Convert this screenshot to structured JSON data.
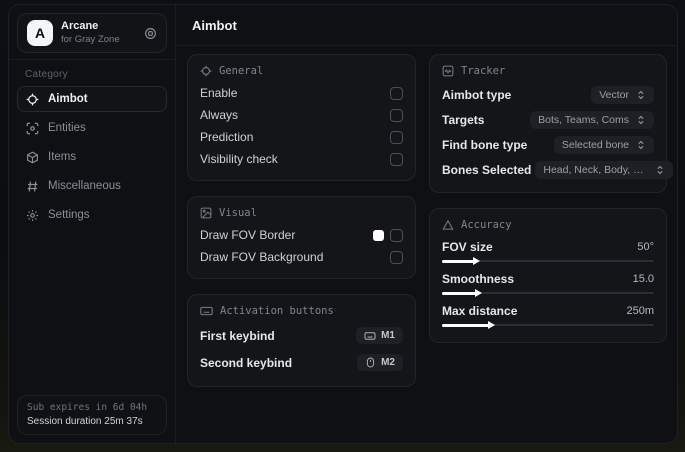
{
  "app": {
    "name": "Arcane",
    "subtitle": "for Gray Zone"
  },
  "sidebar": {
    "category_label": "Category",
    "items": [
      {
        "label": "Aimbot"
      },
      {
        "label": "Entities"
      },
      {
        "label": "Items"
      },
      {
        "label": "Miscellaneous"
      },
      {
        "label": "Settings"
      }
    ],
    "footer": {
      "line1": "Sub expires in 6d 04h",
      "line2": "Session duration 25m 37s"
    }
  },
  "header": {
    "title": "Aimbot"
  },
  "panels": {
    "general": {
      "title": "General",
      "rows": [
        {
          "label": "Enable",
          "checked": false
        },
        {
          "label": "Always",
          "checked": false
        },
        {
          "label": "Prediction",
          "checked": false
        },
        {
          "label": "Visibility check",
          "checked": false
        }
      ]
    },
    "visual": {
      "title": "Visual",
      "rows": [
        {
          "label": "Draw FOV Border",
          "swatch": "#ffffff",
          "checked": false
        },
        {
          "label": "Draw FOV Background",
          "checked": false
        }
      ]
    },
    "activation": {
      "title": "Activation buttons",
      "rows": [
        {
          "label": "First keybind",
          "key": "M1"
        },
        {
          "label": "Second keybind",
          "key": "M2"
        }
      ]
    },
    "tracker": {
      "title": "Tracker",
      "rows": [
        {
          "label": "Aimbot type",
          "value": "Vector"
        },
        {
          "label": "Targets",
          "value": "Bots, Teams, Coms"
        },
        {
          "label": "Find bone type",
          "value": "Selected bone"
        },
        {
          "label": "Bones Selected",
          "value": "Head, Neck, Body, Pe..."
        }
      ]
    },
    "accuracy": {
      "title": "Accuracy",
      "rows": [
        {
          "label": "FOV size",
          "value": "50°",
          "percent": 15
        },
        {
          "label": "Smoothness",
          "value": "15.0",
          "percent": 16
        },
        {
          "label": "Max distance",
          "value": "250m",
          "percent": 22
        }
      ]
    }
  },
  "colors": {
    "fov_border_swatch": "#ffffff",
    "slider_fill": "#ffffff"
  }
}
